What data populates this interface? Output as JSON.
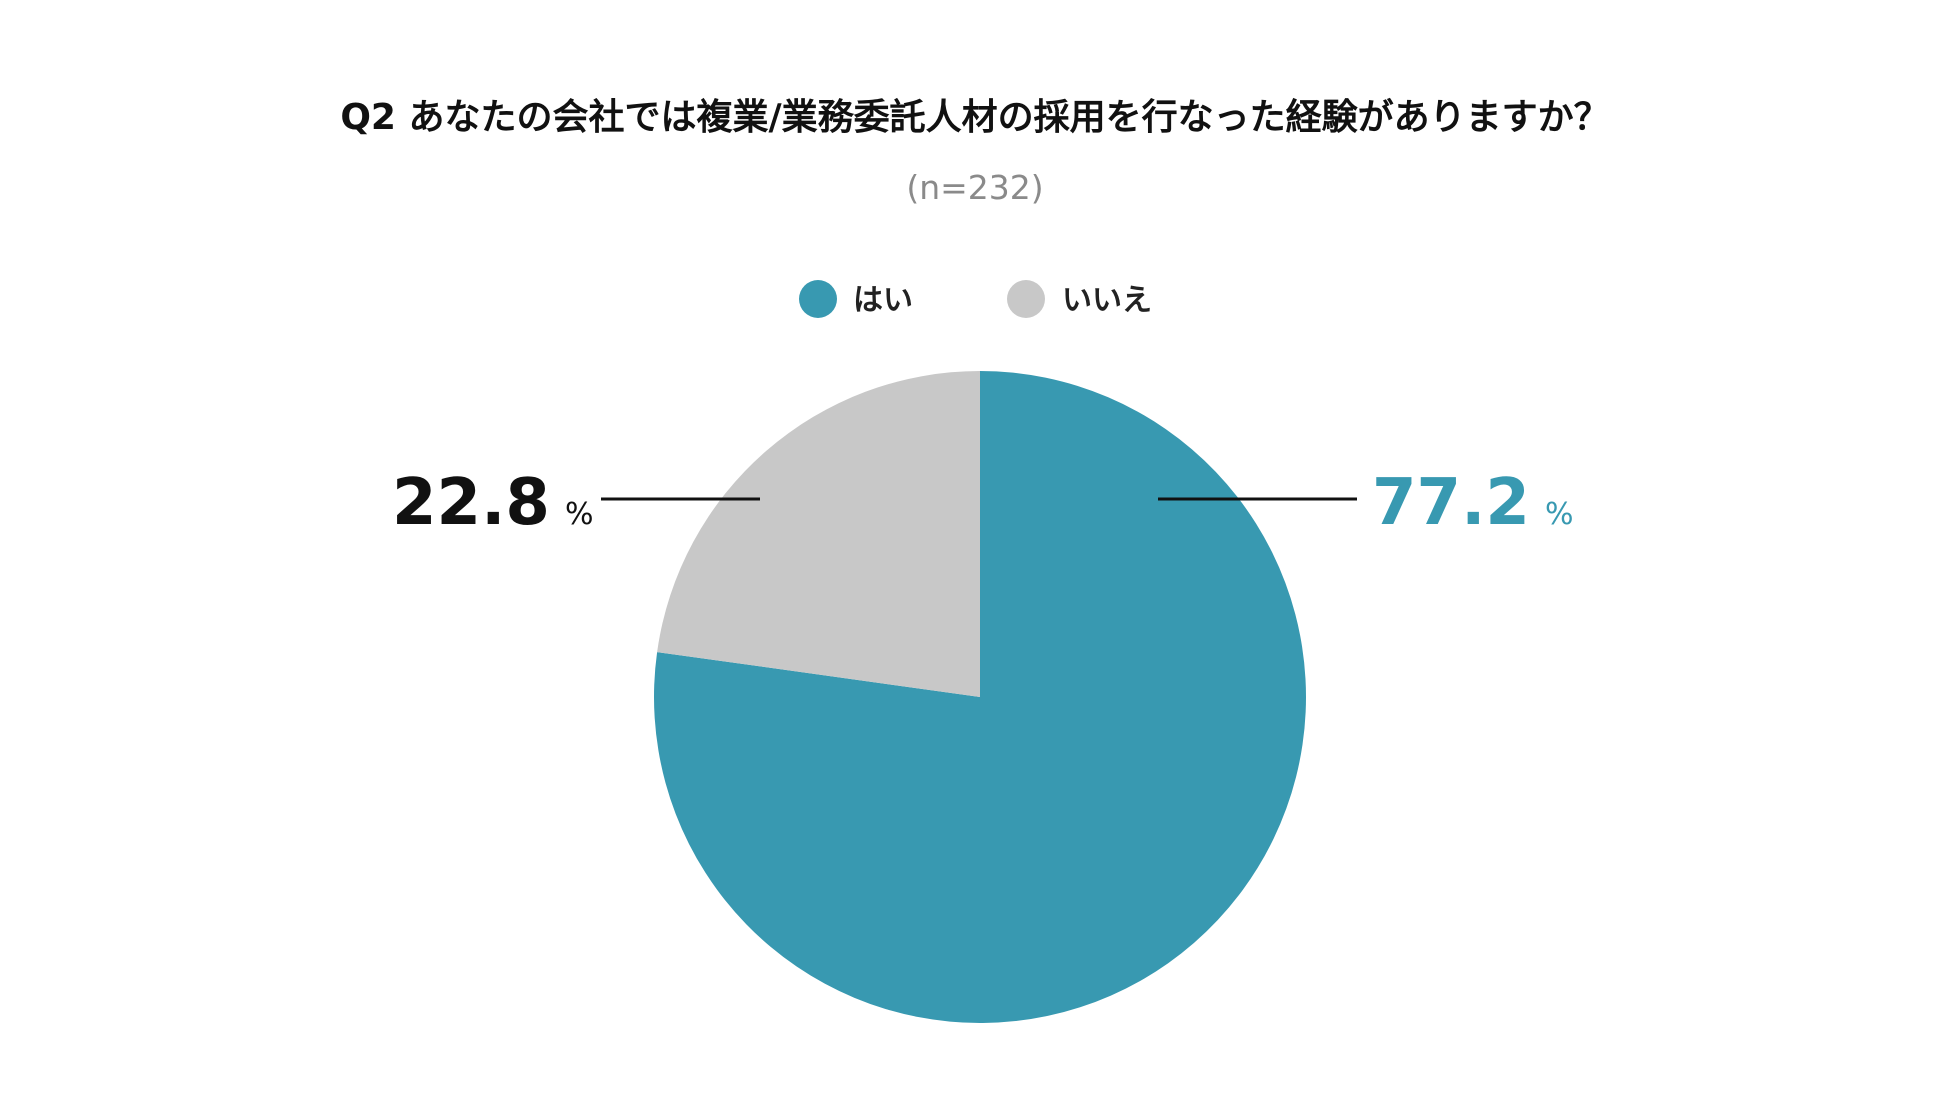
{
  "chart_data": {
    "type": "pie",
    "title": "Q2 あなたの会社では複業/業務委託人材の採用を行なった経験がありますか？",
    "subtitle": "(n=232)",
    "unit": "%",
    "legend_position": "top",
    "start": "12 o'clock",
    "direction": "clockwise",
    "slices": [
      {
        "label": "はい",
        "value": 77.2,
        "display": "77.2",
        "color": "#3899b1",
        "label_color": "#3899b1"
      },
      {
        "label": "いいえ",
        "value": 22.8,
        "display": "22.8",
        "color": "#c8c8c8",
        "label_color": "#111111"
      }
    ]
  }
}
